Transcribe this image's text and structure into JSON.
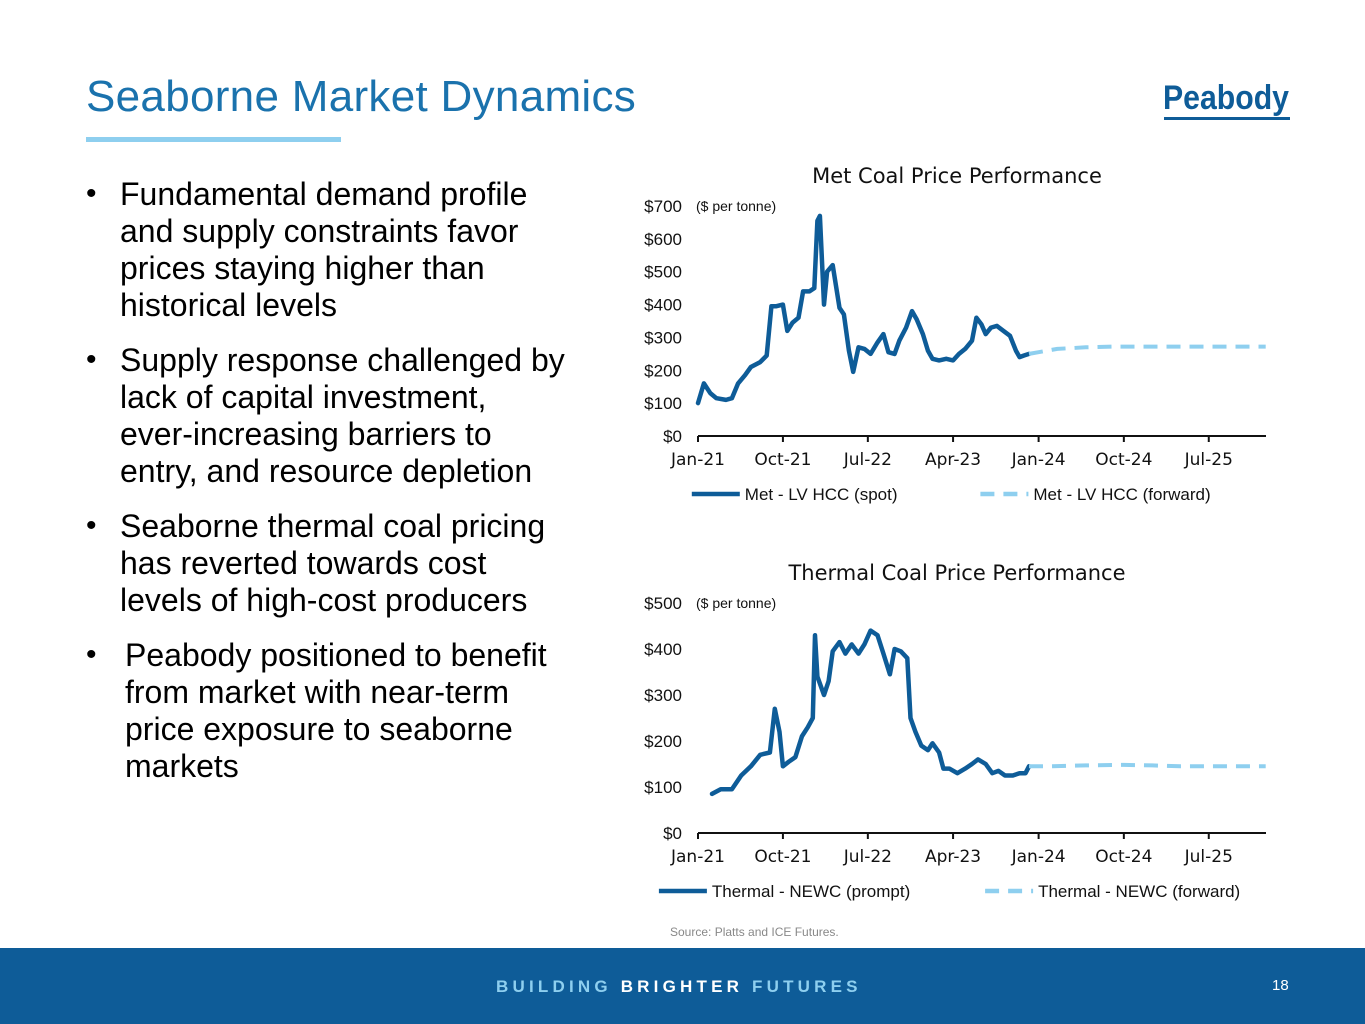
{
  "slide": {
    "title": "Seaborne Market Dynamics",
    "logo_text": "Peabody",
    "bullets": [
      "Fundamental demand profile and supply constraints favor prices staying higher than historical levels",
      "Supply response challenged by lack of capital investment, ever-increasing barriers to entry, and resource depletion",
      "Seaborne thermal coal pricing has reverted towards cost levels of high-cost producers",
      "Peabody positioned to benefit from market with near-term price exposure to seaborne markets"
    ],
    "source": "Source: Platts and ICE Futures.",
    "footer": {
      "tagline_1": "BUILDING",
      "tagline_2": "BRIGHTER",
      "tagline_3": "FUTURES",
      "page_number": "18"
    },
    "colors": {
      "title": "#1a72ad",
      "spot_line": "#0e5c98",
      "forward_line": "#8ecfef",
      "footer_bg": "#0e5c98"
    }
  },
  "chart_data": [
    {
      "type": "line",
      "title": "Met Coal Price Performance",
      "unit_label": "($ per tonne)",
      "xlabel": "",
      "ylabel": "",
      "x_range": [
        "2021-01",
        "2026-01"
      ],
      "x_ticks": [
        "Jan-21",
        "Oct-21",
        "Jul-22",
        "Apr-23",
        "Jan-24",
        "Oct-24",
        "Jul-25"
      ],
      "y_ticks": [
        "$0",
        "$100",
        "$200",
        "$300",
        "$400",
        "$500",
        "$600",
        "$700"
      ],
      "ylim": [
        0,
        700
      ],
      "grid": false,
      "legend_position": "bottom",
      "series": [
        {
          "name": "Met - LV HCC (spot)",
          "style": "solid",
          "color": "#0e5c98",
          "points": [
            [
              "2021-01-01",
              100
            ],
            [
              "2021-01-20",
              160
            ],
            [
              "2021-02-10",
              130
            ],
            [
              "2021-03-01",
              115
            ],
            [
              "2021-04-01",
              110
            ],
            [
              "2021-04-20",
              115
            ],
            [
              "2021-05-10",
              160
            ],
            [
              "2021-06-01",
              185
            ],
            [
              "2021-06-20",
              210
            ],
            [
              "2021-07-20",
              225
            ],
            [
              "2021-08-10",
              245
            ],
            [
              "2021-08-25",
              395
            ],
            [
              "2021-09-10",
              395
            ],
            [
              "2021-10-01",
              400
            ],
            [
              "2021-10-15",
              320
            ],
            [
              "2021-11-01",
              345
            ],
            [
              "2021-11-20",
              360
            ],
            [
              "2021-12-05",
              440
            ],
            [
              "2021-12-25",
              440
            ],
            [
              "2022-01-10",
              450
            ],
            [
              "2022-01-20",
              655
            ],
            [
              "2022-01-28",
              670
            ],
            [
              "2022-02-10",
              400
            ],
            [
              "2022-02-20",
              500
            ],
            [
              "2022-03-10",
              520
            ],
            [
              "2022-04-01",
              390
            ],
            [
              "2022-04-15",
              370
            ],
            [
              "2022-05-01",
              260
            ],
            [
              "2022-05-15",
              195
            ],
            [
              "2022-06-01",
              270
            ],
            [
              "2022-06-20",
              265
            ],
            [
              "2022-07-10",
              250
            ],
            [
              "2022-08-01",
              285
            ],
            [
              "2022-08-20",
              310
            ],
            [
              "2022-09-05",
              255
            ],
            [
              "2022-09-25",
              250
            ],
            [
              "2022-10-10",
              290
            ],
            [
              "2022-11-01",
              330
            ],
            [
              "2022-11-20",
              380
            ],
            [
              "2022-12-05",
              355
            ],
            [
              "2022-12-25",
              310
            ],
            [
              "2023-01-10",
              260
            ],
            [
              "2023-01-25",
              235
            ],
            [
              "2023-02-15",
              230
            ],
            [
              "2023-03-10",
              235
            ],
            [
              "2023-04-01",
              230
            ],
            [
              "2023-04-20",
              250
            ],
            [
              "2023-05-10",
              265
            ],
            [
              "2023-06-01",
              290
            ],
            [
              "2023-06-15",
              360
            ],
            [
              "2023-07-01",
              340
            ],
            [
              "2023-07-15",
              310
            ],
            [
              "2023-08-01",
              330
            ],
            [
              "2023-08-20",
              335
            ],
            [
              "2023-09-10",
              320
            ],
            [
              "2023-10-01",
              305
            ],
            [
              "2023-10-20",
              260
            ],
            [
              "2023-11-01",
              240
            ],
            [
              "2023-11-15",
              245
            ],
            [
              "2023-12-01",
              250
            ]
          ]
        },
        {
          "name": "Met - LV HCC (forward)",
          "style": "dashed",
          "color": "#8ecfef",
          "points": [
            [
              "2023-12-01",
              250
            ],
            [
              "2024-01-01",
              255
            ],
            [
              "2024-03-01",
              265
            ],
            [
              "2024-06-01",
              270
            ],
            [
              "2024-09-01",
              272
            ],
            [
              "2024-12-01",
              272
            ],
            [
              "2025-03-01",
              272
            ],
            [
              "2025-06-01",
              272
            ],
            [
              "2025-09-01",
              272
            ],
            [
              "2025-12-31",
              272
            ]
          ]
        }
      ]
    },
    {
      "type": "line",
      "title": "Thermal Coal Price Performance",
      "unit_label": "($ per tonne)",
      "xlabel": "",
      "ylabel": "",
      "x_range": [
        "2021-01",
        "2026-01"
      ],
      "x_ticks": [
        "Jan-21",
        "Oct-21",
        "Jul-22",
        "Apr-23",
        "Jan-24",
        "Oct-24",
        "Jul-25"
      ],
      "y_ticks": [
        "$0",
        "$100",
        "$200",
        "$300",
        "$400",
        "$500"
      ],
      "ylim": [
        0,
        500
      ],
      "grid": false,
      "legend_position": "bottom",
      "series": [
        {
          "name": "Thermal - NEWC (prompt)",
          "style": "solid",
          "color": "#0e5c98",
          "points": [
            [
              "2021-02-15",
              85
            ],
            [
              "2021-03-15",
              95
            ],
            [
              "2021-04-20",
              95
            ],
            [
              "2021-05-20",
              125
            ],
            [
              "2021-06-20",
              145
            ],
            [
              "2021-07-20",
              170
            ],
            [
              "2021-08-20",
              175
            ],
            [
              "2021-09-05",
              270
            ],
            [
              "2021-09-20",
              220
            ],
            [
              "2021-10-01",
              145
            ],
            [
              "2021-10-20",
              155
            ],
            [
              "2021-11-10",
              165
            ],
            [
              "2021-12-01",
              210
            ],
            [
              "2021-12-20",
              230
            ],
            [
              "2022-01-05",
              250
            ],
            [
              "2022-01-12",
              430
            ],
            [
              "2022-01-20",
              340
            ],
            [
              "2022-02-10",
              300
            ],
            [
              "2022-02-25",
              330
            ],
            [
              "2022-03-10",
              395
            ],
            [
              "2022-04-01",
              415
            ],
            [
              "2022-04-20",
              390
            ],
            [
              "2022-05-10",
              410
            ],
            [
              "2022-06-01",
              390
            ],
            [
              "2022-06-20",
              410
            ],
            [
              "2022-07-10",
              440
            ],
            [
              "2022-08-01",
              430
            ],
            [
              "2022-08-20",
              390
            ],
            [
              "2022-09-10",
              345
            ],
            [
              "2022-09-25",
              400
            ],
            [
              "2022-10-15",
              395
            ],
            [
              "2022-11-05",
              380
            ],
            [
              "2022-11-15",
              250
            ],
            [
              "2022-12-01",
              220
            ],
            [
              "2022-12-20",
              190
            ],
            [
              "2023-01-10",
              180
            ],
            [
              "2023-01-25",
              195
            ],
            [
              "2023-02-15",
              175
            ],
            [
              "2023-03-01",
              140
            ],
            [
              "2023-03-20",
              140
            ],
            [
              "2023-04-15",
              130
            ],
            [
              "2023-05-10",
              140
            ],
            [
              "2023-06-01",
              150
            ],
            [
              "2023-06-20",
              160
            ],
            [
              "2023-07-15",
              150
            ],
            [
              "2023-08-05",
              130
            ],
            [
              "2023-08-25",
              135
            ],
            [
              "2023-09-15",
              125
            ],
            [
              "2023-10-10",
              125
            ],
            [
              "2023-11-01",
              130
            ],
            [
              "2023-11-20",
              130
            ],
            [
              "2023-12-01",
              145
            ]
          ]
        },
        {
          "name": "Thermal - NEWC  (forward)",
          "style": "dashed",
          "color": "#8ecfef",
          "points": [
            [
              "2023-12-01",
              145
            ],
            [
              "2024-02-01",
              145
            ],
            [
              "2024-06-01",
              147
            ],
            [
              "2024-10-01",
              148
            ],
            [
              "2025-01-01",
              147
            ],
            [
              "2025-04-01",
              145
            ],
            [
              "2025-09-01",
              145
            ],
            [
              "2025-12-31",
              145
            ]
          ]
        }
      ]
    }
  ]
}
